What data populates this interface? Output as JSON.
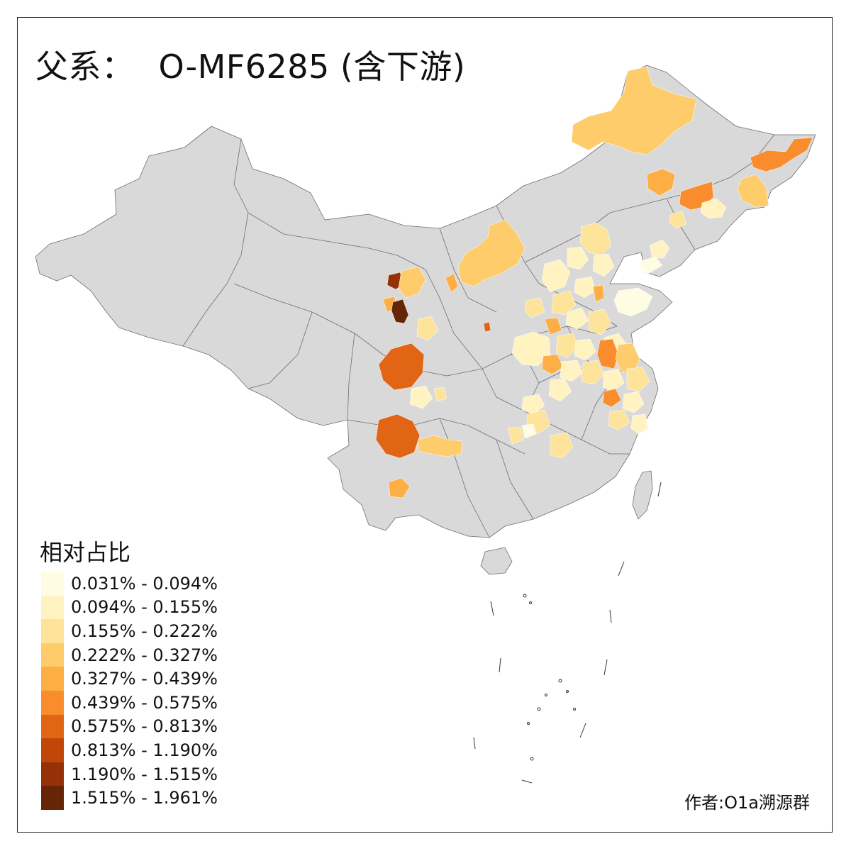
{
  "title": {
    "prefix": "父系：",
    "haplogroup": "O-MF6285 (含下游)"
  },
  "legend": {
    "title": "相对占比",
    "bins": [
      {
        "label": "0.031% - 0.094%",
        "color": "#FFFCE4"
      },
      {
        "label": "0.094% - 0.155%",
        "color": "#FFF3C2"
      },
      {
        "label": "0.155% - 0.222%",
        "color": "#FEE39A"
      },
      {
        "label": "0.222% - 0.327%",
        "color": "#FECC6A"
      },
      {
        "label": "0.327% - 0.439%",
        "color": "#FDAE44"
      },
      {
        "label": "0.439% - 0.575%",
        "color": "#F98C2C"
      },
      {
        "label": "0.575% - 0.813%",
        "color": "#E26516"
      },
      {
        "label": "0.813% - 1.190%",
        "color": "#C04707"
      },
      {
        "label": "1.190% - 1.515%",
        "color": "#953106"
      },
      {
        "label": "1.515% - 1.961%",
        "color": "#662506"
      }
    ]
  },
  "map": {
    "base_color": "#D9D9D9",
    "border_color": "#6E6E6E"
  },
  "credit": "作者:O1a溯源群"
}
